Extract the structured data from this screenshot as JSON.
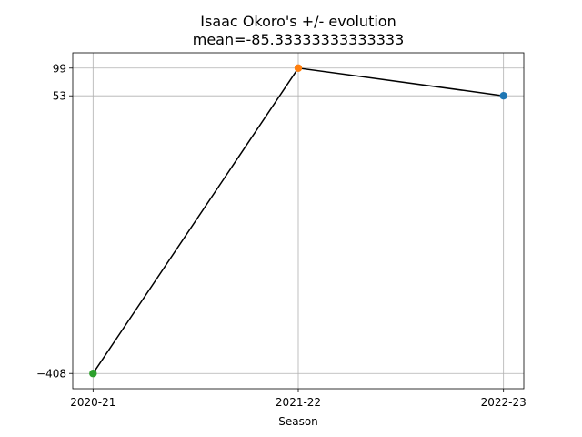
{
  "chart_data": {
    "type": "line",
    "title": "Isaac Okoro's +/- evolution",
    "subtitle": "mean=-85.33333333333333",
    "xlabel": "Season",
    "ylabel": "",
    "categories": [
      "2020-21",
      "2021-22",
      "2022-23"
    ],
    "values": [
      -408,
      99,
      53
    ],
    "point_colors": [
      "#2ca02c",
      "#ff7f0e",
      "#1f77b4"
    ],
    "line_color": "#000000",
    "yticks": [
      -408,
      53,
      99
    ],
    "ytick_labels": [
      "−408",
      "53",
      "99"
    ],
    "ylim": [
      -433.35,
      124.35
    ],
    "grid": true
  }
}
